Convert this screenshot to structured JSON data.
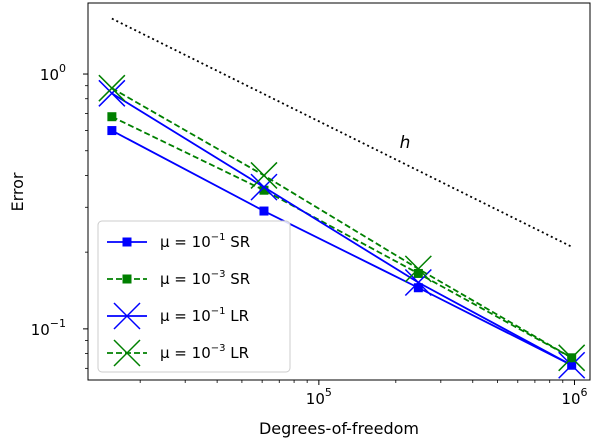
{
  "chart_data": {
    "type": "line",
    "xscale": "log",
    "yscale": "log",
    "xlabel": "Degrees-of-freedom",
    "ylabel": "Error",
    "xlim": [
      12500,
      1150000
    ],
    "ylim": [
      0.063,
      1.9
    ],
    "x_ticks": [
      {
        "value": 100000,
        "base": "10",
        "exp": "5"
      },
      {
        "value": 1000000,
        "base": "10",
        "exp": "6"
      }
    ],
    "y_ticks": [
      {
        "value": 0.1,
        "base": "10",
        "exp": "−1"
      },
      {
        "value": 1,
        "base": "10",
        "exp": "0"
      }
    ],
    "grid": false,
    "legend_position": "bottom-left",
    "series": [
      {
        "name": "μ = 10⁻¹ SR",
        "legend": {
          "pre": "μ = 10",
          "sup": "−1",
          "post": " SR"
        },
        "color": "#0000ff",
        "dash": "solid",
        "marker": "square",
        "x": [
          15500,
          61000,
          245000,
          975000
        ],
        "y": [
          0.6,
          0.29,
          0.145,
          0.072
        ]
      },
      {
        "name": "μ = 10⁻³ SR",
        "legend": {
          "pre": "μ = 10",
          "sup": "−3",
          "post": " SR"
        },
        "color": "#008000",
        "dash": "dashed",
        "marker": "square",
        "x": [
          15500,
          61000,
          245000,
          975000
        ],
        "y": [
          0.68,
          0.35,
          0.165,
          0.077
        ]
      },
      {
        "name": "μ = 10⁻¹ LR",
        "legend": {
          "pre": "μ = 10",
          "sup": "−1",
          "post": " LR"
        },
        "color": "#0000ff",
        "dash": "solid",
        "marker": "x",
        "x": [
          15500,
          61000,
          245000,
          975000
        ],
        "y": [
          0.84,
          0.36,
          0.152,
          0.072
        ]
      },
      {
        "name": "μ = 10⁻³ LR",
        "legend": {
          "pre": "μ = 10",
          "sup": "−3",
          "post": " LR"
        },
        "color": "#008000",
        "dash": "dashed",
        "marker": "x",
        "x": [
          15500,
          61000,
          245000,
          975000
        ],
        "y": [
          0.88,
          0.4,
          0.172,
          0.077
        ]
      }
    ],
    "reference_line": {
      "label": "h",
      "color": "#000000",
      "dash": "dotted",
      "x": [
        15500,
        975000
      ],
      "y": [
        1.65,
        0.21
      ]
    }
  }
}
